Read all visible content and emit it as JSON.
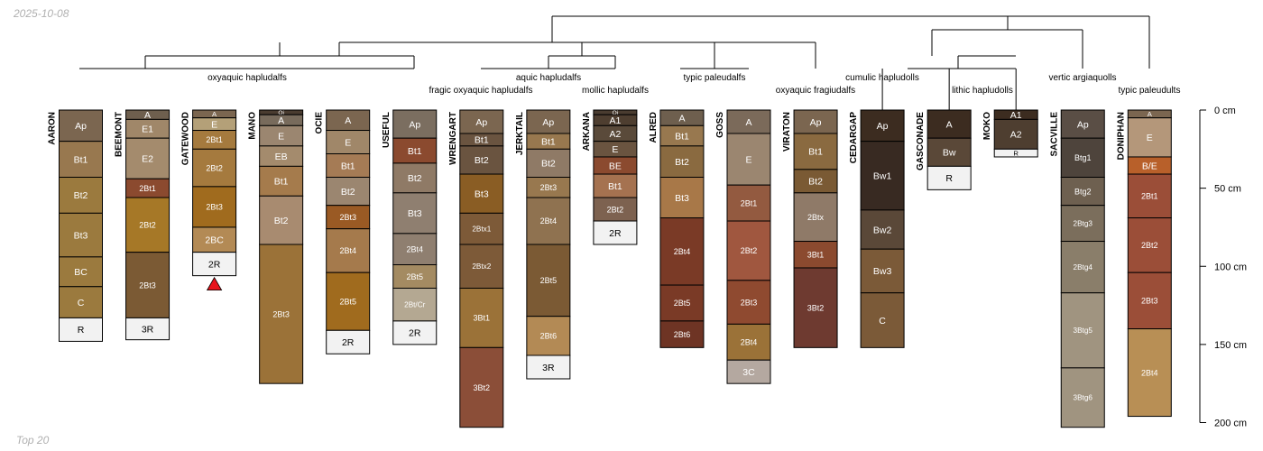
{
  "date_label": "2025-10-08",
  "footer_label": "Top 20",
  "chart_data": {
    "type": "soil-profile-sketch",
    "depth_unit": "cm",
    "depth_range": [
      0,
      200
    ],
    "depth_ticks": [
      {
        "depth": 0,
        "label": "0 cm"
      },
      {
        "depth": 50,
        "label": "50 cm"
      },
      {
        "depth": 100,
        "label": "100 cm"
      },
      {
        "depth": 150,
        "label": "150 cm"
      },
      {
        "depth": 200,
        "label": "200 cm"
      }
    ],
    "groups": [
      {
        "label": "oxyaquic hapludalfs",
        "profiles": [
          "AARON",
          "BEEMONT",
          "GATEWOOD",
          "MANO",
          "OCIE",
          "USEFUL"
        ]
      },
      {
        "label": "fragic oxyaquic hapludalfs",
        "profiles": [
          "WRENGART"
        ]
      },
      {
        "label": "aquic hapludalfs",
        "profiles": [
          "JERKTAIL"
        ]
      },
      {
        "label": "mollic hapludalfs",
        "profiles": [
          "ARKANA"
        ]
      },
      {
        "label": "typic paleudalfs",
        "profiles": [
          "ALRED",
          "GOSS"
        ]
      },
      {
        "label": "oxyaquic fragiudalfs",
        "profiles": [
          "VIRATON"
        ]
      },
      {
        "label": "cumulic hapludolls",
        "profiles": [
          "CEDARGAP"
        ]
      },
      {
        "label": "lithic hapludolls",
        "profiles": [
          "GASCONADE",
          "MOKO"
        ]
      },
      {
        "label": "vertic argiaquolls",
        "profiles": [
          "SACVILLE"
        ]
      },
      {
        "label": "typic paleudults",
        "profiles": [
          "DONIPHAN"
        ]
      }
    ],
    "profiles": [
      {
        "name": "AARON",
        "horizons": [
          {
            "name": "Ap",
            "top": 0,
            "bottom": 20,
            "color": "#7b6650"
          },
          {
            "name": "Bt1",
            "top": 20,
            "bottom": 43,
            "color": "#98784f"
          },
          {
            "name": "Bt2",
            "top": 43,
            "bottom": 66,
            "color": "#9b7a3e"
          },
          {
            "name": "Bt3",
            "top": 66,
            "bottom": 94,
            "color": "#9b7a3e"
          },
          {
            "name": "BC",
            "top": 94,
            "bottom": 113,
            "color": "#9b7a3e"
          },
          {
            "name": "C",
            "top": 113,
            "bottom": 133,
            "color": "#9b7a3e"
          },
          {
            "name": "R",
            "top": 133,
            "bottom": 148,
            "color": "#f2f2f2"
          }
        ]
      },
      {
        "name": "BEEMONT",
        "horizons": [
          {
            "name": "A",
            "top": 0,
            "bottom": 6,
            "color": "#6e5f4e"
          },
          {
            "name": "E1",
            "top": 6,
            "bottom": 18,
            "color": "#a08769"
          },
          {
            "name": "E2",
            "top": 18,
            "bottom": 44,
            "color": "#a48b6d"
          },
          {
            "name": "2Bt1",
            "top": 44,
            "bottom": 56,
            "color": "#8b4a2f"
          },
          {
            "name": "2Bt2",
            "top": 56,
            "bottom": 91,
            "color": "#a67827"
          },
          {
            "name": "2Bt3",
            "top": 91,
            "bottom": 133,
            "color": "#7b5a34"
          },
          {
            "name": "3R",
            "top": 133,
            "bottom": 147,
            "color": "#f2f2f2"
          }
        ]
      },
      {
        "name": "GATEWOOD",
        "horizons": [
          {
            "name": "A",
            "top": 0,
            "bottom": 5,
            "color": "#7b6650"
          },
          {
            "name": "E",
            "top": 5,
            "bottom": 13,
            "color": "#b4a078"
          },
          {
            "name": "2Bt1",
            "top": 13,
            "bottom": 25,
            "color": "#a57a3e"
          },
          {
            "name": "2Bt2",
            "top": 25,
            "bottom": 49,
            "color": "#a57a3e"
          },
          {
            "name": "2Bt3",
            "top": 49,
            "bottom": 75,
            "color": "#a06b1e"
          },
          {
            "name": "2BC",
            "top": 75,
            "bottom": 91,
            "color": "#b38a55"
          },
          {
            "name": "2R",
            "top": 91,
            "bottom": 106,
            "color": "#f2f2f2"
          }
        ]
      },
      {
        "name": "MANO",
        "horizons": [
          {
            "name": "Oi",
            "top": 0,
            "bottom": 3,
            "color": "#4a3c30"
          },
          {
            "name": "A",
            "top": 3,
            "bottom": 10,
            "color": "#786b5c"
          },
          {
            "name": "E",
            "top": 10,
            "bottom": 23,
            "color": "#9b8670"
          },
          {
            "name": "EB",
            "top": 23,
            "bottom": 36,
            "color": "#a48b6d"
          },
          {
            "name": "Bt1",
            "top": 36,
            "bottom": 55,
            "color": "#a57b4c"
          },
          {
            "name": "Bt2",
            "top": 55,
            "bottom": 86,
            "color": "#a88b70"
          },
          {
            "name": "2Bt3",
            "top": 86,
            "bottom": 175,
            "color": "#9b7238"
          }
        ]
      },
      {
        "name": "OCIE",
        "horizons": [
          {
            "name": "A",
            "top": 0,
            "bottom": 13,
            "color": "#7b6650"
          },
          {
            "name": "E",
            "top": 13,
            "bottom": 28,
            "color": "#a08769"
          },
          {
            "name": "Bt1",
            "top": 28,
            "bottom": 43,
            "color": "#a57b55"
          },
          {
            "name": "Bt2",
            "top": 43,
            "bottom": 61,
            "color": "#9b8670"
          },
          {
            "name": "2Bt3",
            "top": 61,
            "bottom": 76,
            "color": "#9a5a24"
          },
          {
            "name": "2Bt4",
            "top": 76,
            "bottom": 104,
            "color": "#a57a4c"
          },
          {
            "name": "2Bt5",
            "top": 104,
            "bottom": 141,
            "color": "#a06b1e"
          },
          {
            "name": "2R",
            "top": 141,
            "bottom": 156,
            "color": "#f2f2f2"
          }
        ]
      },
      {
        "name": "USEFUL",
        "horizons": [
          {
            "name": "Ap",
            "top": 0,
            "bottom": 18,
            "color": "#7b6e60"
          },
          {
            "name": "Bt1",
            "top": 18,
            "bottom": 34,
            "color": "#8b4a2f"
          },
          {
            "name": "Bt2",
            "top": 34,
            "bottom": 53,
            "color": "#8f7a66"
          },
          {
            "name": "Bt3",
            "top": 53,
            "bottom": 79,
            "color": "#8f7f70"
          },
          {
            "name": "2Bt4",
            "top": 79,
            "bottom": 99,
            "color": "#8f7f70"
          },
          {
            "name": "2Bt5",
            "top": 99,
            "bottom": 114,
            "color": "#a48b62"
          },
          {
            "name": "2Bt/Cr",
            "top": 114,
            "bottom": 135,
            "color": "#b4a892"
          },
          {
            "name": "2R",
            "top": 135,
            "bottom": 150,
            "color": "#f2f2f2"
          }
        ]
      },
      {
        "name": "WRENGART",
        "horizons": [
          {
            "name": "Ap",
            "top": 0,
            "bottom": 15,
            "color": "#7b6650"
          },
          {
            "name": "Bt1",
            "top": 15,
            "bottom": 23,
            "color": "#6a5440"
          },
          {
            "name": "Bt2",
            "top": 23,
            "bottom": 41,
            "color": "#6a5440"
          },
          {
            "name": "Bt3",
            "top": 41,
            "bottom": 66,
            "color": "#8a5d24"
          },
          {
            "name": "2Btx1",
            "top": 66,
            "bottom": 86,
            "color": "#7d5a38"
          },
          {
            "name": "2Btx2",
            "top": 86,
            "bottom": 114,
            "color": "#7d5a38"
          },
          {
            "name": "3Bt1",
            "top": 114,
            "bottom": 152,
            "color": "#9b7238"
          },
          {
            "name": "3Bt2",
            "top": 152,
            "bottom": 203,
            "color": "#8b4e38"
          }
        ]
      },
      {
        "name": "JERKTAIL",
        "horizons": [
          {
            "name": "Ap",
            "top": 0,
            "bottom": 15,
            "color": "#7b6650"
          },
          {
            "name": "Bt1",
            "top": 15,
            "bottom": 25,
            "color": "#98784f"
          },
          {
            "name": "Bt2",
            "top": 25,
            "bottom": 43,
            "color": "#8f7a66"
          },
          {
            "name": "2Bt3",
            "top": 43,
            "bottom": 56,
            "color": "#98784f"
          },
          {
            "name": "2Bt4",
            "top": 56,
            "bottom": 86,
            "color": "#8f7250"
          },
          {
            "name": "2Bt5",
            "top": 86,
            "bottom": 132,
            "color": "#7b5a34"
          },
          {
            "name": "2Bt6",
            "top": 132,
            "bottom": 157,
            "color": "#b38a55"
          },
          {
            "name": "3R",
            "top": 157,
            "bottom": 172,
            "color": "#f2f2f2"
          }
        ]
      },
      {
        "name": "ARKANA",
        "horizons": [
          {
            "name": "Oi",
            "top": 0,
            "bottom": 3,
            "color": "#4a3c30"
          },
          {
            "name": "A1",
            "top": 3,
            "bottom": 10,
            "color": "#4e3e30"
          },
          {
            "name": "A2",
            "top": 10,
            "bottom": 20,
            "color": "#5a4a3a"
          },
          {
            "name": "E",
            "top": 20,
            "bottom": 30,
            "color": "#6a5440"
          },
          {
            "name": "BE",
            "top": 30,
            "bottom": 41,
            "color": "#8b4a2f"
          },
          {
            "name": "Bt1",
            "top": 41,
            "bottom": 56,
            "color": "#a57250"
          },
          {
            "name": "2Bt2",
            "top": 56,
            "bottom": 71,
            "color": "#7d6250"
          },
          {
            "name": "2R",
            "top": 71,
            "bottom": 86,
            "color": "#f2f2f2"
          }
        ]
      },
      {
        "name": "ALRED",
        "horizons": [
          {
            "name": "A",
            "top": 0,
            "bottom": 10,
            "color": "#6e5f4e"
          },
          {
            "name": "Bt1",
            "top": 10,
            "bottom": 23,
            "color": "#98784f"
          },
          {
            "name": "Bt2",
            "top": 23,
            "bottom": 43,
            "color": "#8a6a40"
          },
          {
            "name": "Bt3",
            "top": 43,
            "bottom": 69,
            "color": "#a87848"
          },
          {
            "name": "2Bt4",
            "top": 69,
            "bottom": 112,
            "color": "#7a3a26"
          },
          {
            "name": "2Bt5",
            "top": 112,
            "bottom": 135,
            "color": "#7a3a26"
          },
          {
            "name": "2Bt6",
            "top": 135,
            "bottom": 152,
            "color": "#6e3424"
          }
        ]
      },
      {
        "name": "GOSS",
        "horizons": [
          {
            "name": "A",
            "top": 0,
            "bottom": 15,
            "color": "#7b6a5a"
          },
          {
            "name": "E",
            "top": 15,
            "bottom": 48,
            "color": "#9b8670"
          },
          {
            "name": "2Bt1",
            "top": 48,
            "bottom": 71,
            "color": "#935a40"
          },
          {
            "name": "2Bt2",
            "top": 71,
            "bottom": 109,
            "color": "#a0573f"
          },
          {
            "name": "2Bt3",
            "top": 109,
            "bottom": 137,
            "color": "#8f4a30"
          },
          {
            "name": "2Bt4",
            "top": 137,
            "bottom": 160,
            "color": "#9b7238"
          },
          {
            "name": "3C",
            "top": 160,
            "bottom": 175,
            "color": "#b4a8a0"
          }
        ]
      },
      {
        "name": "VIRATON",
        "horizons": [
          {
            "name": "Ap",
            "top": 0,
            "bottom": 15,
            "color": "#7b6650"
          },
          {
            "name": "Bt1",
            "top": 15,
            "bottom": 38,
            "color": "#8a6a40"
          },
          {
            "name": "Bt2",
            "top": 38,
            "bottom": 53,
            "color": "#7a5a34"
          },
          {
            "name": "2Btx",
            "top": 53,
            "bottom": 84,
            "color": "#8f7a68"
          },
          {
            "name": "3Bt1",
            "top": 84,
            "bottom": 101,
            "color": "#8b4a2f"
          },
          {
            "name": "3Bt2",
            "top": 101,
            "bottom": 152,
            "color": "#6e3a30"
          }
        ]
      },
      {
        "name": "CEDARGAP",
        "horizons": [
          {
            "name": "Ap",
            "top": 0,
            "bottom": 20,
            "color": "#3c2c20"
          },
          {
            "name": "Bw1",
            "top": 20,
            "bottom": 64,
            "color": "#382a22"
          },
          {
            "name": "Bw2",
            "top": 64,
            "bottom": 89,
            "color": "#5a4838"
          },
          {
            "name": "Bw3",
            "top": 89,
            "bottom": 117,
            "color": "#7b5a38"
          },
          {
            "name": "C",
            "top": 117,
            "bottom": 152,
            "color": "#7b5a38"
          }
        ]
      },
      {
        "name": "GASCONADE",
        "horizons": [
          {
            "name": "A",
            "top": 0,
            "bottom": 18,
            "color": "#3c2c20"
          },
          {
            "name": "Bw",
            "top": 18,
            "bottom": 36,
            "color": "#5a4838"
          },
          {
            "name": "R",
            "top": 36,
            "bottom": 51,
            "color": "#f2f2f2"
          }
        ]
      },
      {
        "name": "MOKO",
        "horizons": [
          {
            "name": "A1",
            "top": 0,
            "bottom": 6,
            "color": "#3c2c20"
          },
          {
            "name": "A2",
            "top": 6,
            "bottom": 25,
            "color": "#4e3e30"
          },
          {
            "name": "R",
            "top": 25,
            "bottom": 30,
            "color": "#f2f2f2"
          }
        ]
      },
      {
        "name": "SACVILLE",
        "horizons": [
          {
            "name": "Ap",
            "top": 0,
            "bottom": 18,
            "color": "#5a4e45"
          },
          {
            "name": "Btg1",
            "top": 18,
            "bottom": 43,
            "color": "#4e443c"
          },
          {
            "name": "Btg2",
            "top": 43,
            "bottom": 61,
            "color": "#6e6050"
          },
          {
            "name": "2Btg3",
            "top": 61,
            "bottom": 84,
            "color": "#7b6e5c"
          },
          {
            "name": "2Btg4",
            "top": 84,
            "bottom": 117,
            "color": "#8a7e6a"
          },
          {
            "name": "3Btg5",
            "top": 117,
            "bottom": 165,
            "color": "#a09480"
          },
          {
            "name": "3Btg6",
            "top": 165,
            "bottom": 203,
            "color": "#a09480"
          }
        ]
      },
      {
        "name": "DONIPHAN",
        "horizons": [
          {
            "name": "A",
            "top": 0,
            "bottom": 5,
            "color": "#7b6650"
          },
          {
            "name": "E",
            "top": 5,
            "bottom": 30,
            "color": "#b4977a"
          },
          {
            "name": "B/E",
            "top": 30,
            "bottom": 41,
            "color": "#b8602a"
          },
          {
            "name": "2Bt1",
            "top": 41,
            "bottom": 69,
            "color": "#9b4e38"
          },
          {
            "name": "2Bt2",
            "top": 69,
            "bottom": 104,
            "color": "#9b4e38"
          },
          {
            "name": "2Bt3",
            "top": 104,
            "bottom": 140,
            "color": "#9b4e38"
          },
          {
            "name": "2Bt4",
            "top": 140,
            "bottom": 196,
            "color": "#b88f55"
          }
        ]
      }
    ],
    "markers": [
      {
        "profile": "GATEWOOD",
        "depth": 106,
        "shape": "triangle",
        "color": "#e8141c"
      }
    ]
  }
}
